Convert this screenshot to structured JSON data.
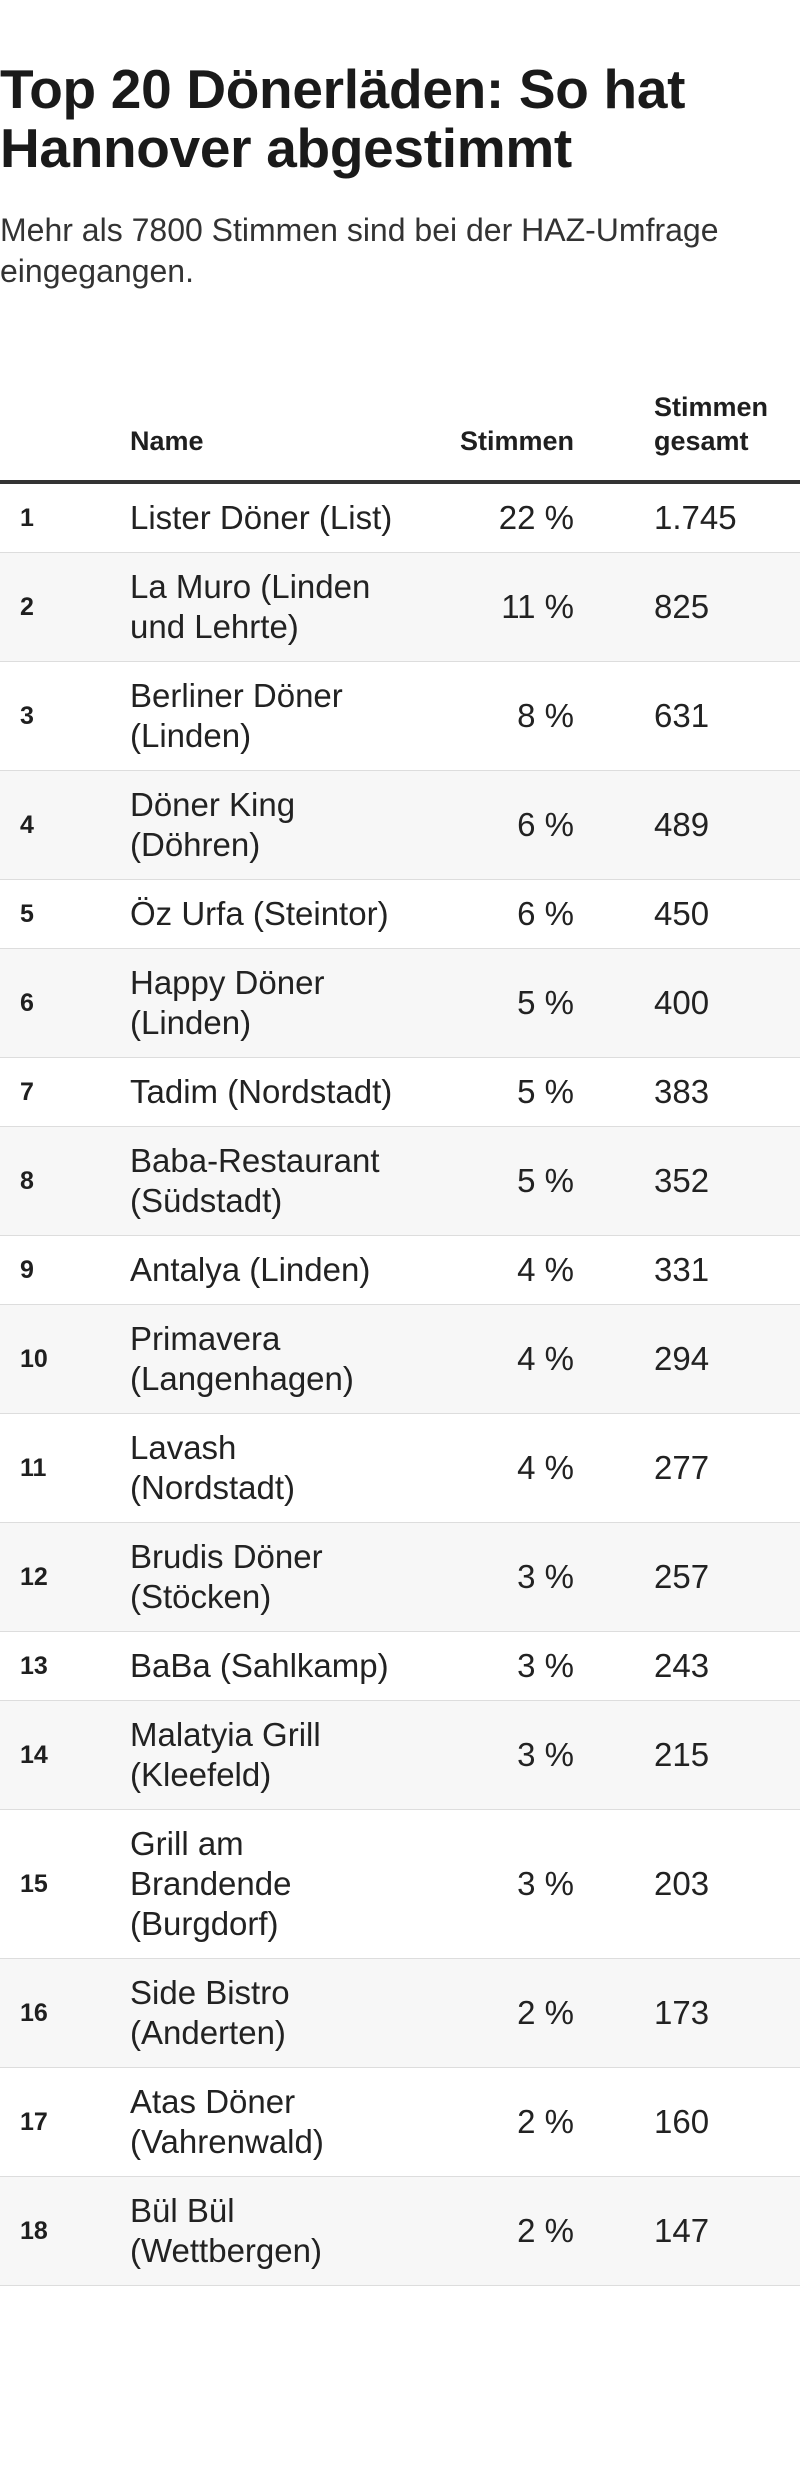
{
  "article": {
    "title": "Top 20 Dönerläden: So hat Hannover abgestimmt",
    "subtitle": "Mehr als 7800 Stimmen sind bei der HAZ-Umfrage eingegangen."
  },
  "table": {
    "headers": {
      "rank": "",
      "name": "Name",
      "pct": "Stimmen",
      "total": "Stimmen gesamt"
    },
    "rows": [
      {
        "rank": "1",
        "name": "Lister Döner (List)",
        "pct": "22 %",
        "total": "1.745"
      },
      {
        "rank": "2",
        "name": "La Muro (Linden und Lehrte)",
        "pct": "11 %",
        "total": "825"
      },
      {
        "rank": "3",
        "name": "Berliner Döner (Linden)",
        "pct": "8 %",
        "total": "631"
      },
      {
        "rank": "4",
        "name": "Döner King (Döhren)",
        "pct": "6 %",
        "total": "489"
      },
      {
        "rank": "5",
        "name": "Öz Urfa (Steintor)",
        "pct": "6 %",
        "total": "450"
      },
      {
        "rank": "6",
        "name": "Happy Döner (Linden)",
        "pct": "5 %",
        "total": "400"
      },
      {
        "rank": "7",
        "name": "Tadim (Nordstadt)",
        "pct": "5 %",
        "total": "383"
      },
      {
        "rank": "8",
        "name": "Baba-Restaurant (Südstadt)",
        "pct": "5 %",
        "total": "352"
      },
      {
        "rank": "9",
        "name": "Antalya (Linden)",
        "pct": "4 %",
        "total": "331"
      },
      {
        "rank": "10",
        "name": "Primavera (Langenhagen)",
        "pct": "4 %",
        "total": "294"
      },
      {
        "rank": "11",
        "name": "Lavash (Nordstadt)",
        "pct": "4 %",
        "total": "277"
      },
      {
        "rank": "12",
        "name": "Brudis Döner (Stöcken)",
        "pct": "3 %",
        "total": "257"
      },
      {
        "rank": "13",
        "name": "BaBa (Sahlkamp)",
        "pct": "3 %",
        "total": "243"
      },
      {
        "rank": "14",
        "name": "Malatyia Grill (Kleefeld)",
        "pct": "3 %",
        "total": "215"
      },
      {
        "rank": "15",
        "name": "Grill am Brandende (Burgdorf)",
        "pct": "3 %",
        "total": "203"
      },
      {
        "rank": "16",
        "name": "Side Bistro (Anderten)",
        "pct": "2 %",
        "total": "173"
      },
      {
        "rank": "17",
        "name": "Atas Döner (Vahrenwald)",
        "pct": "2 %",
        "total": "160"
      },
      {
        "rank": "18",
        "name": "Bül Bül (Wettbergen)",
        "pct": "2 %",
        "total": "147"
      }
    ]
  }
}
